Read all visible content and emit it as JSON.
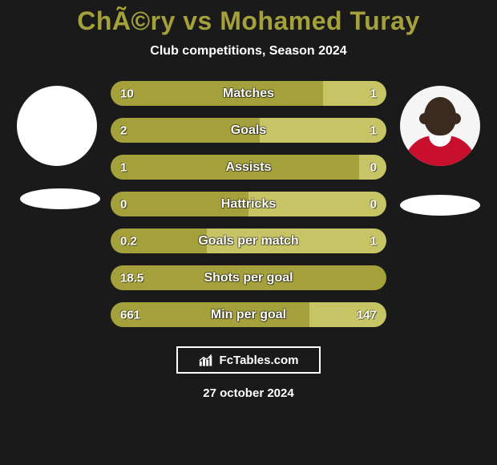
{
  "title": {
    "text": "ChÃ©ry vs Mohamed Turay",
    "color": "#a4a13c",
    "fontsize": 32
  },
  "subtitle": {
    "text": "Club competitions, Season 2024",
    "color": "#ffffff",
    "fontsize": 16
  },
  "bar_style": {
    "left_color": "#a4a13c",
    "right_color": "#c7c466",
    "height": 31,
    "border_radius": 16,
    "label_fontsize": 16,
    "value_fontsize": 15,
    "text_color": "#ffffff"
  },
  "rows": [
    {
      "label": "Matches",
      "left": "10",
      "right": "1",
      "left_pct": 77,
      "right_pct": 23
    },
    {
      "label": "Goals",
      "left": "2",
      "right": "1",
      "left_pct": 54,
      "right_pct": 46
    },
    {
      "label": "Assists",
      "left": "1",
      "right": "0",
      "left_pct": 90,
      "right_pct": 10
    },
    {
      "label": "Hattricks",
      "left": "0",
      "right": "0",
      "left_pct": 50,
      "right_pct": 50
    },
    {
      "label": "Goals per match",
      "left": "0.2",
      "right": "1",
      "left_pct": 35,
      "right_pct": 65
    },
    {
      "label": "Shots per goal",
      "left": "18.5",
      "right": "",
      "left_pct": 100,
      "right_pct": 0
    },
    {
      "label": "Min per goal",
      "left": "661",
      "right": "147",
      "left_pct": 72,
      "right_pct": 28
    }
  ],
  "branding": {
    "text": "FcTables.com"
  },
  "date": {
    "text": "27 october 2024"
  },
  "background_color": "#1a1a1a"
}
